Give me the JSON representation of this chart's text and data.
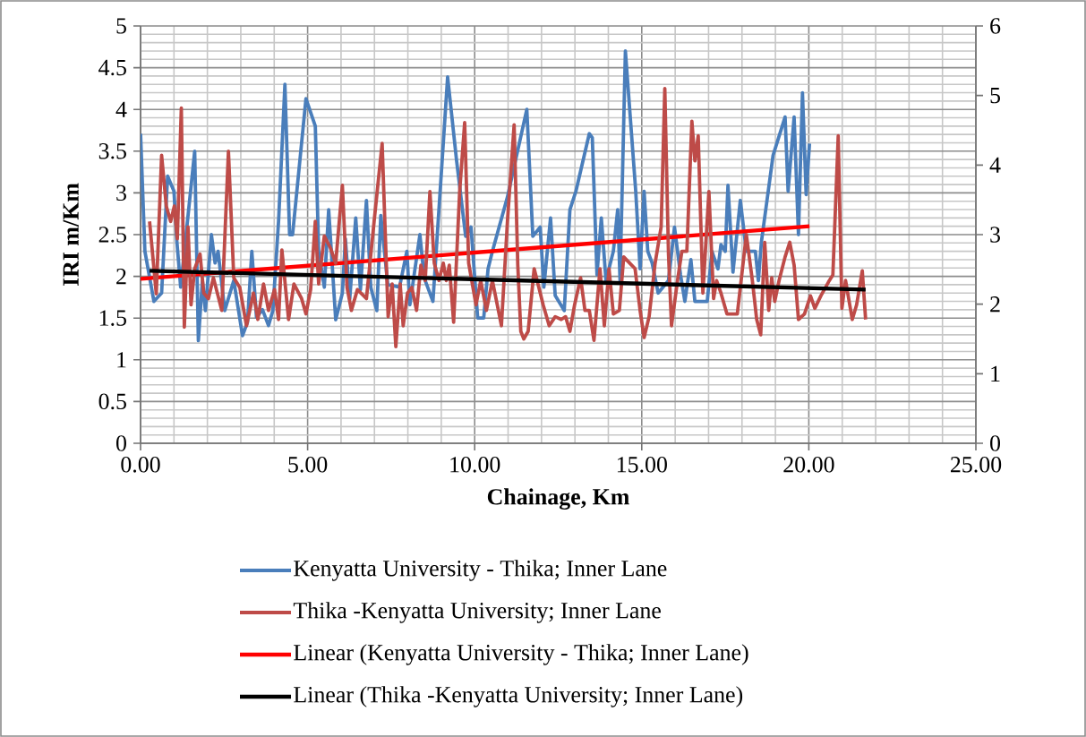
{
  "chart_data": {
    "type": "line",
    "xlabel": "Chainage, Km",
    "ylabel": "IRI m/Km",
    "xlim": [
      0,
      25
    ],
    "xticks": [
      {
        "value": 0,
        "label": "0.00"
      },
      {
        "value": 5,
        "label": "5.00"
      },
      {
        "value": 10,
        "label": "10.00"
      },
      {
        "value": 15,
        "label": "15.00"
      },
      {
        "value": 20,
        "label": "20.00"
      },
      {
        "value": 25,
        "label": "25.00"
      }
    ],
    "ylim": [
      0,
      5
    ],
    "yticks": [
      0,
      0.5,
      1,
      1.5,
      2,
      2.5,
      3,
      3.5,
      4,
      4.5,
      5
    ],
    "y2lim": [
      0,
      6
    ],
    "y2ticks": [
      0,
      1,
      2,
      3,
      4,
      5,
      6
    ],
    "grid": true,
    "legend": "bottom",
    "series": [
      {
        "name": "Kenyatta University - Thika;  Inner Lane",
        "color": "#4a7ebb",
        "x": [
          0,
          0.13,
          0.4,
          0.63,
          0.81,
          1.0,
          1.08,
          1.2,
          1.62,
          1.73,
          1.85,
          1.94,
          2.12,
          2.23,
          2.32,
          2.52,
          2.79,
          3.05,
          3.2,
          3.33,
          3.47,
          3.65,
          3.83,
          3.96,
          4.13,
          4.32,
          4.46,
          4.55,
          4.95,
          5.23,
          5.33,
          5.5,
          5.63,
          5.84,
          6.04,
          6.13,
          6.26,
          6.44,
          6.58,
          6.76,
          6.89,
          7.07,
          7.19,
          7.4,
          7.75,
          7.97,
          8.06,
          8.36,
          8.49,
          8.75,
          9.19,
          9.46,
          9.73,
          9.89,
          10.09,
          10.27,
          10.4,
          10.53,
          10.98,
          11.56,
          11.74,
          11.96,
          12.07,
          12.27,
          12.41,
          12.68,
          12.85,
          13.03,
          13.43,
          13.52,
          13.66,
          13.79,
          13.93,
          14.15,
          14.28,
          14.35,
          14.51,
          14.82,
          14.95,
          15.07,
          15.18,
          15.31,
          15.49,
          15.8,
          15.98,
          16.16,
          16.29,
          16.47,
          16.59,
          16.96,
          17.1,
          17.28,
          17.37,
          17.5,
          17.58,
          17.73,
          17.95,
          18.13,
          18.4,
          18.49,
          18.58,
          18.93,
          19.29,
          19.38,
          19.56,
          19.69,
          19.81,
          19.92,
          20.02
        ],
        "values": [
          3.71,
          2.3,
          1.7,
          1.8,
          3.2,
          3.02,
          2.45,
          1.87,
          3.5,
          1.23,
          1.95,
          1.59,
          2.5,
          2.16,
          2.3,
          1.59,
          1.95,
          1.29,
          1.45,
          2.3,
          1.51,
          1.6,
          1.41,
          1.59,
          2.66,
          4.3,
          2.5,
          2.5,
          4.13,
          3.8,
          2.3,
          1.87,
          2.8,
          1.48,
          1.8,
          2.45,
          1.73,
          2.7,
          1.84,
          2.91,
          1.87,
          1.59,
          2.73,
          1.9,
          1.87,
          2.3,
          1.66,
          2.5,
          1.98,
          1.7,
          4.39,
          3.38,
          2.48,
          2.59,
          1.5,
          1.5,
          2.09,
          2.3,
          2.95,
          4.0,
          2.48,
          2.59,
          1.87,
          2.7,
          1.77,
          1.59,
          2.8,
          3.02,
          3.71,
          3.66,
          2.02,
          2.7,
          1.95,
          2.3,
          2.8,
          1.95,
          4.7,
          3.02,
          2.09,
          3.02,
          2.3,
          2.16,
          1.8,
          1.95,
          2.59,
          2.02,
          1.7,
          2.2,
          1.7,
          1.7,
          2.3,
          2.09,
          2.38,
          2.3,
          3.09,
          2.05,
          2.91,
          2.3,
          2.3,
          1.95,
          2.41,
          3.45,
          3.91,
          3.02,
          3.91,
          2.5,
          4.2,
          2.98,
          3.59
        ]
      },
      {
        "name": "Thika -Kenyatta University; Inner Lane",
        "color": "#be4b48",
        "axis": "y2",
        "x": [
          0.27,
          0.47,
          0.63,
          0.77,
          0.9,
          1.01,
          1.1,
          1.22,
          1.31,
          1.42,
          1.51,
          1.62,
          1.78,
          1.89,
          2.03,
          2.18,
          2.43,
          2.63,
          2.79,
          2.97,
          3.17,
          3.38,
          3.51,
          3.68,
          3.83,
          4.01,
          4.13,
          4.23,
          4.43,
          4.59,
          4.82,
          4.95,
          5.09,
          5.23,
          5.33,
          5.5,
          5.68,
          5.84,
          6.04,
          6.18,
          6.31,
          6.49,
          6.76,
          6.99,
          7.23,
          7.41,
          7.53,
          7.64,
          7.77,
          7.86,
          7.99,
          8.12,
          8.26,
          8.39,
          8.52,
          8.66,
          8.79,
          8.93,
          9.06,
          9.15,
          9.24,
          9.37,
          9.55,
          9.7,
          9.82,
          10.04,
          10.18,
          10.35,
          10.53,
          10.8,
          10.98,
          11.18,
          11.29,
          11.38,
          11.47,
          11.6,
          11.78,
          11.92,
          12.05,
          12.23,
          12.41,
          12.59,
          12.72,
          12.85,
          12.99,
          13.17,
          13.3,
          13.43,
          13.57,
          13.75,
          13.88,
          14.02,
          14.15,
          14.33,
          14.46,
          14.64,
          14.8,
          14.95,
          15.07,
          15.22,
          15.4,
          15.58,
          15.69,
          15.8,
          15.89,
          16.07,
          16.2,
          16.35,
          16.5,
          16.59,
          16.69,
          16.83,
          17.01,
          17.15,
          17.24,
          17.37,
          17.55,
          17.86,
          18.13,
          18.31,
          18.44,
          18.56,
          18.68,
          18.8,
          18.89,
          18.98,
          19.11,
          19.29,
          19.43,
          19.56,
          19.69,
          19.87,
          20.05,
          20.18,
          20.36,
          20.59,
          20.72,
          20.88,
          20.99,
          21.1,
          21.3,
          21.43,
          21.6,
          21.7
        ],
        "values": [
          3.19,
          2.15,
          4.14,
          3.41,
          3.19,
          3.41,
          2.94,
          4.82,
          1.67,
          3.11,
          1.99,
          2.51,
          2.72,
          2.16,
          2.08,
          2.38,
          1.91,
          4.2,
          2.38,
          2.24,
          1.69,
          2.16,
          1.78,
          2.29,
          1.91,
          2.21,
          1.78,
          2.78,
          1.78,
          2.29,
          2.08,
          1.86,
          2.21,
          3.19,
          2.29,
          2.98,
          2.81,
          2.59,
          3.71,
          2.24,
          1.91,
          2.21,
          2.08,
          3.19,
          4.31,
          1.82,
          2.29,
          1.39,
          2.29,
          1.69,
          2.16,
          2.24,
          1.91,
          2.56,
          2.34,
          3.62,
          2.59,
          2.34,
          2.59,
          2.34,
          2.56,
          1.74,
          3.62,
          4.61,
          2.59,
          1.99,
          2.34,
          1.91,
          2.34,
          1.69,
          3.19,
          4.58,
          2.56,
          1.61,
          1.5,
          1.61,
          2.51,
          2.24,
          1.99,
          1.69,
          1.82,
          1.78,
          1.82,
          1.61,
          1.99,
          2.38,
          1.91,
          1.91,
          1.48,
          2.51,
          1.69,
          2.51,
          1.86,
          1.91,
          2.68,
          2.59,
          2.51,
          1.91,
          1.52,
          1.82,
          2.59,
          3.11,
          5.1,
          2.72,
          1.69,
          2.34,
          2.76,
          2.76,
          4.63,
          4.06,
          4.42,
          2.16,
          3.62,
          2.08,
          2.34,
          2.16,
          1.86,
          1.86,
          3.0,
          2.34,
          1.78,
          1.56,
          2.89,
          1.91,
          2.38,
          2.04,
          2.34,
          2.68,
          2.89,
          2.56,
          1.78,
          1.86,
          2.12,
          1.94,
          2.12,
          2.32,
          2.42,
          4.42,
          1.94,
          2.34,
          1.78,
          1.99,
          2.48,
          1.78
        ]
      },
      {
        "name": "Linear (Kenyatta University - Thika;  Inner Lane)",
        "color": "#ff0000",
        "x": [
          0,
          20.02
        ],
        "values": [
          1.97,
          2.6
        ]
      },
      {
        "name": "Linear (Thika -Kenyatta University; Inner Lane)",
        "color": "#000000",
        "axis": "y2",
        "x": [
          0.27,
          21.7
        ],
        "values": [
          2.48,
          2.21
        ]
      }
    ]
  }
}
